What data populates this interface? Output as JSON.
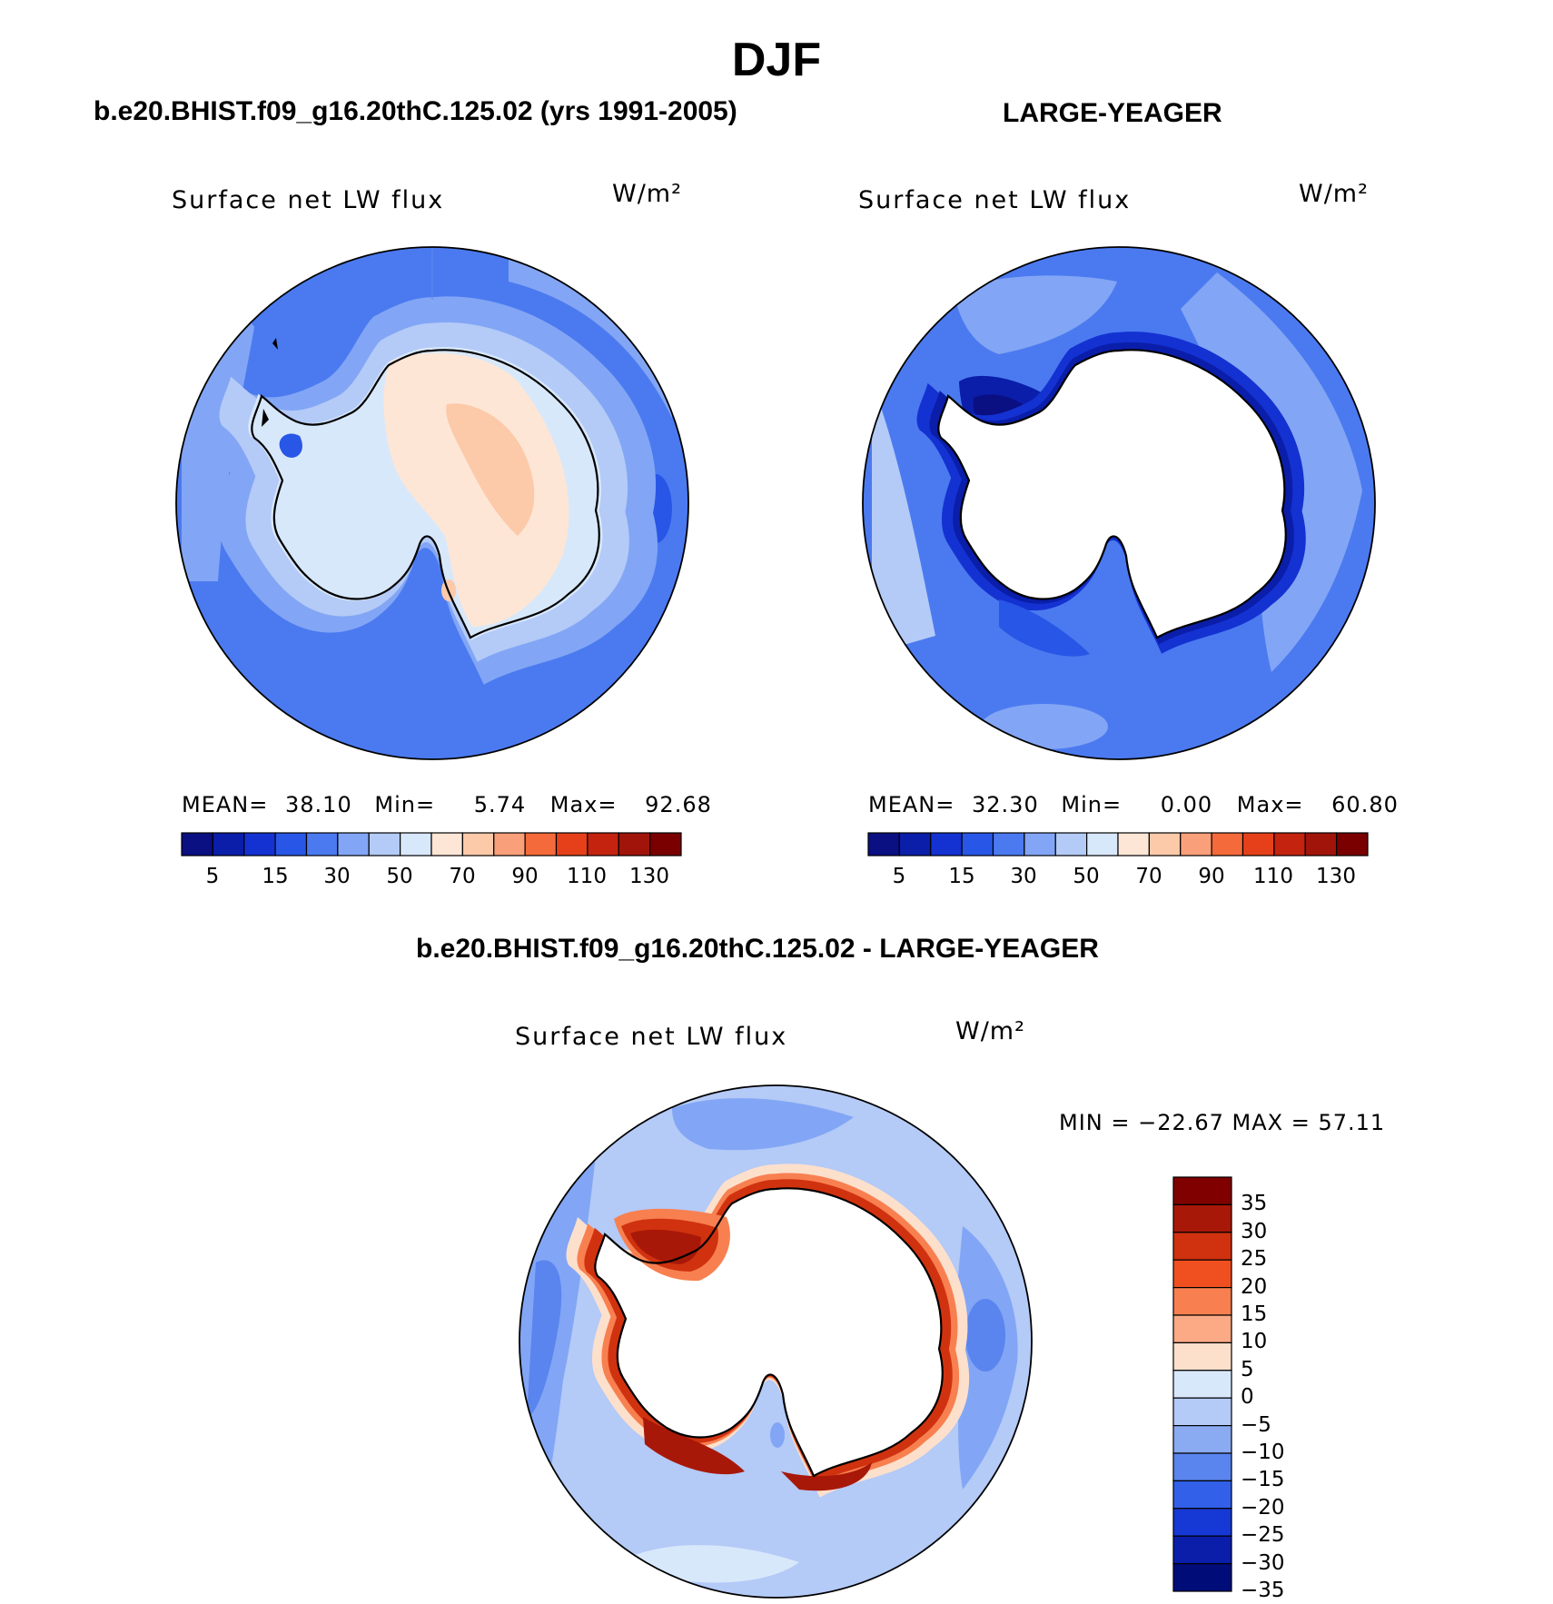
{
  "title": "DJF",
  "panels": [
    {
      "case_title": "b.e20.BHIST.f09_g16.20thC.125.02 (yrs 1991-2005)",
      "variable": "Surface net LW flux",
      "units": "W/m²",
      "stats": {
        "mean_label": "MEAN=",
        "mean": "38.10",
        "min_label": "Min=",
        "min": "5.74",
        "max_label": "Max=",
        "max": "92.68"
      }
    },
    {
      "case_title": "LARGE-YEAGER",
      "variable": "Surface net LW flux",
      "units": "W/m²",
      "stats": {
        "mean_label": "MEAN=",
        "mean": "32.30",
        "min_label": "Min=",
        "min": "0.00",
        "max_label": "Max=",
        "max": "60.80"
      }
    },
    {
      "case_title": "b.e20.BHIST.f09_g16.20thC.125.02 - LARGE-YEAGER",
      "variable": "Surface net LW flux",
      "units": "W/m²",
      "stats_line": "MIN = −22.67 MAX =  57.11"
    }
  ],
  "colorbar_abs": {
    "colors": [
      "#0a0f82",
      "#0a1eaa",
      "#1432d2",
      "#2856e6",
      "#4b7af0",
      "#82a6f5",
      "#b4caf7",
      "#d8e8fb",
      "#fde6d6",
      "#fcc9a9",
      "#f9a07a",
      "#f56a3a",
      "#e6401a",
      "#c3230f",
      "#a0140a",
      "#7a0000"
    ],
    "tick_labels": [
      "5",
      "15",
      "30",
      "50",
      "70",
      "90",
      "110",
      "130"
    ]
  },
  "colorbar_diff": {
    "colors": [
      "#800000",
      "#a81808",
      "#d0320f",
      "#f05020",
      "#f88050",
      "#fcaa86",
      "#fde0cc",
      "#d8e8fb",
      "#b4caf7",
      "#8aaaf2",
      "#5a84ee",
      "#3260e8",
      "#1638d4",
      "#0a1eaa",
      "#000d78"
    ],
    "tick_labels": [
      "35",
      "30",
      "25",
      "20",
      "15",
      "10",
      "5",
      "0",
      "−5",
      "−10",
      "−15",
      "−20",
      "−25",
      "−30",
      "−35"
    ]
  },
  "chart_data": [
    {
      "type": "map",
      "projection": "south polar stereographic",
      "title": "Surface net LW flux",
      "units": "W/m²",
      "case": "b.e20.BHIST.f09_g16.20thC.125.02 (yrs 1991-2005)",
      "stats": {
        "mean": 38.1,
        "min": 5.74,
        "max": 92.68
      },
      "contour_levels": [
        5,
        10,
        15,
        20,
        30,
        40,
        50,
        60,
        70,
        80,
        90,
        100,
        110,
        120,
        130
      ],
      "fields": {
        "open_ocean": 40,
        "sea_ice_zone": 55,
        "antarctic_interior": 68
      }
    },
    {
      "type": "map",
      "projection": "south polar stereographic",
      "title": "Surface net LW flux",
      "units": "W/m²",
      "case": "LARGE-YEAGER",
      "stats": {
        "mean": 32.3,
        "min": 0.0,
        "max": 60.8
      },
      "contour_levels": [
        5,
        10,
        15,
        20,
        30,
        40,
        50,
        60,
        70,
        80,
        90,
        100,
        110,
        120,
        130
      ],
      "fields": {
        "open_ocean": 38,
        "coastal_minimum": 5,
        "antarctic_interior": null
      }
    },
    {
      "type": "map",
      "projection": "south polar stereographic",
      "title": "Surface net LW flux",
      "units": "W/m²",
      "case": "b.e20.BHIST.f09_g16.20thC.125.02 - LARGE-YEAGER",
      "stats": {
        "min": -22.67,
        "max": 57.11
      },
      "contour_levels": [
        -35,
        -30,
        -25,
        -20,
        -15,
        -10,
        -5,
        0,
        5,
        10,
        15,
        20,
        25,
        30,
        35
      ],
      "fields": {
        "open_ocean": -8,
        "coastal_maximum": 40,
        "antarctic_interior": null
      }
    }
  ]
}
